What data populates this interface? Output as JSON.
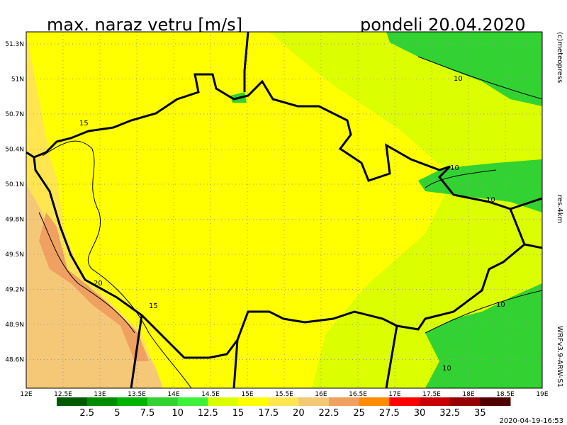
{
  "header": {
    "title": "max. naraz vetru [m/s]",
    "date": "pondeli 20.04.2020"
  },
  "side": {
    "credit": "(c)meteopress",
    "resolution": "res.4km",
    "model": "WRFv3.9-ARW-S1"
  },
  "map": {
    "lat_labels": [
      "51.3N",
      "51N",
      "50.7N",
      "50.4N",
      "50.1N",
      "49.8N",
      "49.5N",
      "49.2N",
      "48.9N",
      "48.6N"
    ],
    "lon_labels": [
      "12E",
      "12.5E",
      "13E",
      "13.5E",
      "14E",
      "14.5E",
      "15E",
      "15.5E",
      "16E",
      "16.5E",
      "17E",
      "17.5E",
      "18E",
      "18.5E",
      "19E"
    ],
    "contour_labels": [
      "15",
      "20",
      "15",
      "10",
      "10",
      "10",
      "10",
      "10"
    ]
  },
  "legend": {
    "colors": [
      "#005a00",
      "#008c00",
      "#00b400",
      "#32d232",
      "#3cf03c",
      "#dcff00",
      "#ffff00",
      "#ffe650",
      "#f5c878",
      "#f0a060",
      "#ff8c00",
      "#ff0000",
      "#c80000",
      "#960000",
      "#500000"
    ],
    "labels": [
      "2.5",
      "5",
      "7.5",
      "10",
      "12.5",
      "15",
      "17.5",
      "20",
      "22.5",
      "25",
      "27.5",
      "30",
      "32.5",
      "35"
    ]
  },
  "footer": {
    "timestamp": "2020-04-19-16:53"
  }
}
